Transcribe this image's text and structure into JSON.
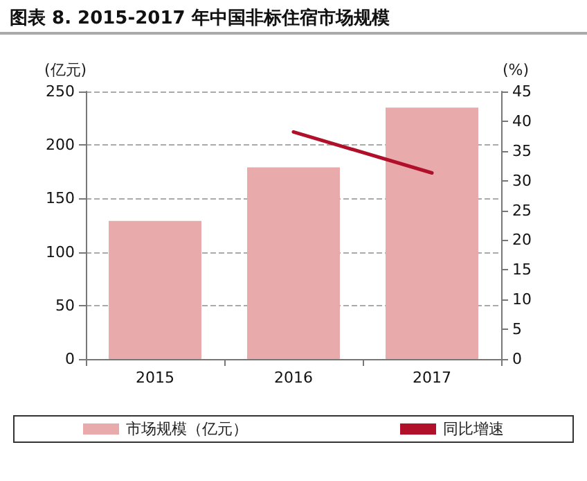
{
  "chart_data": {
    "type": "bar",
    "title": "图表 8. 2015-2017 年中国非标住宿市场规模",
    "categories": [
      "2015",
      "2016",
      "2017"
    ],
    "series": [
      {
        "name": "市场规模（亿元）",
        "color": "#e8aaaa",
        "values": [
          129,
          179,
          235
        ]
      },
      {
        "name": "同比增速",
        "type": "line",
        "axis": "y2",
        "color": "#b0102a",
        "values": [
          null,
          38.2,
          31.3
        ]
      }
    ],
    "ylabel": "(亿元)",
    "y2label": "(%)",
    "ylim": [
      0,
      250
    ],
    "yticks": [
      0,
      50,
      100,
      150,
      200,
      250
    ],
    "y2lim": [
      0,
      45
    ],
    "y2ticks": [
      0,
      5,
      10,
      15,
      20,
      25,
      30,
      35,
      40,
      45
    ],
    "grid": "y",
    "legend": "bottom",
    "marker": "none",
    "line_style": "solid"
  }
}
